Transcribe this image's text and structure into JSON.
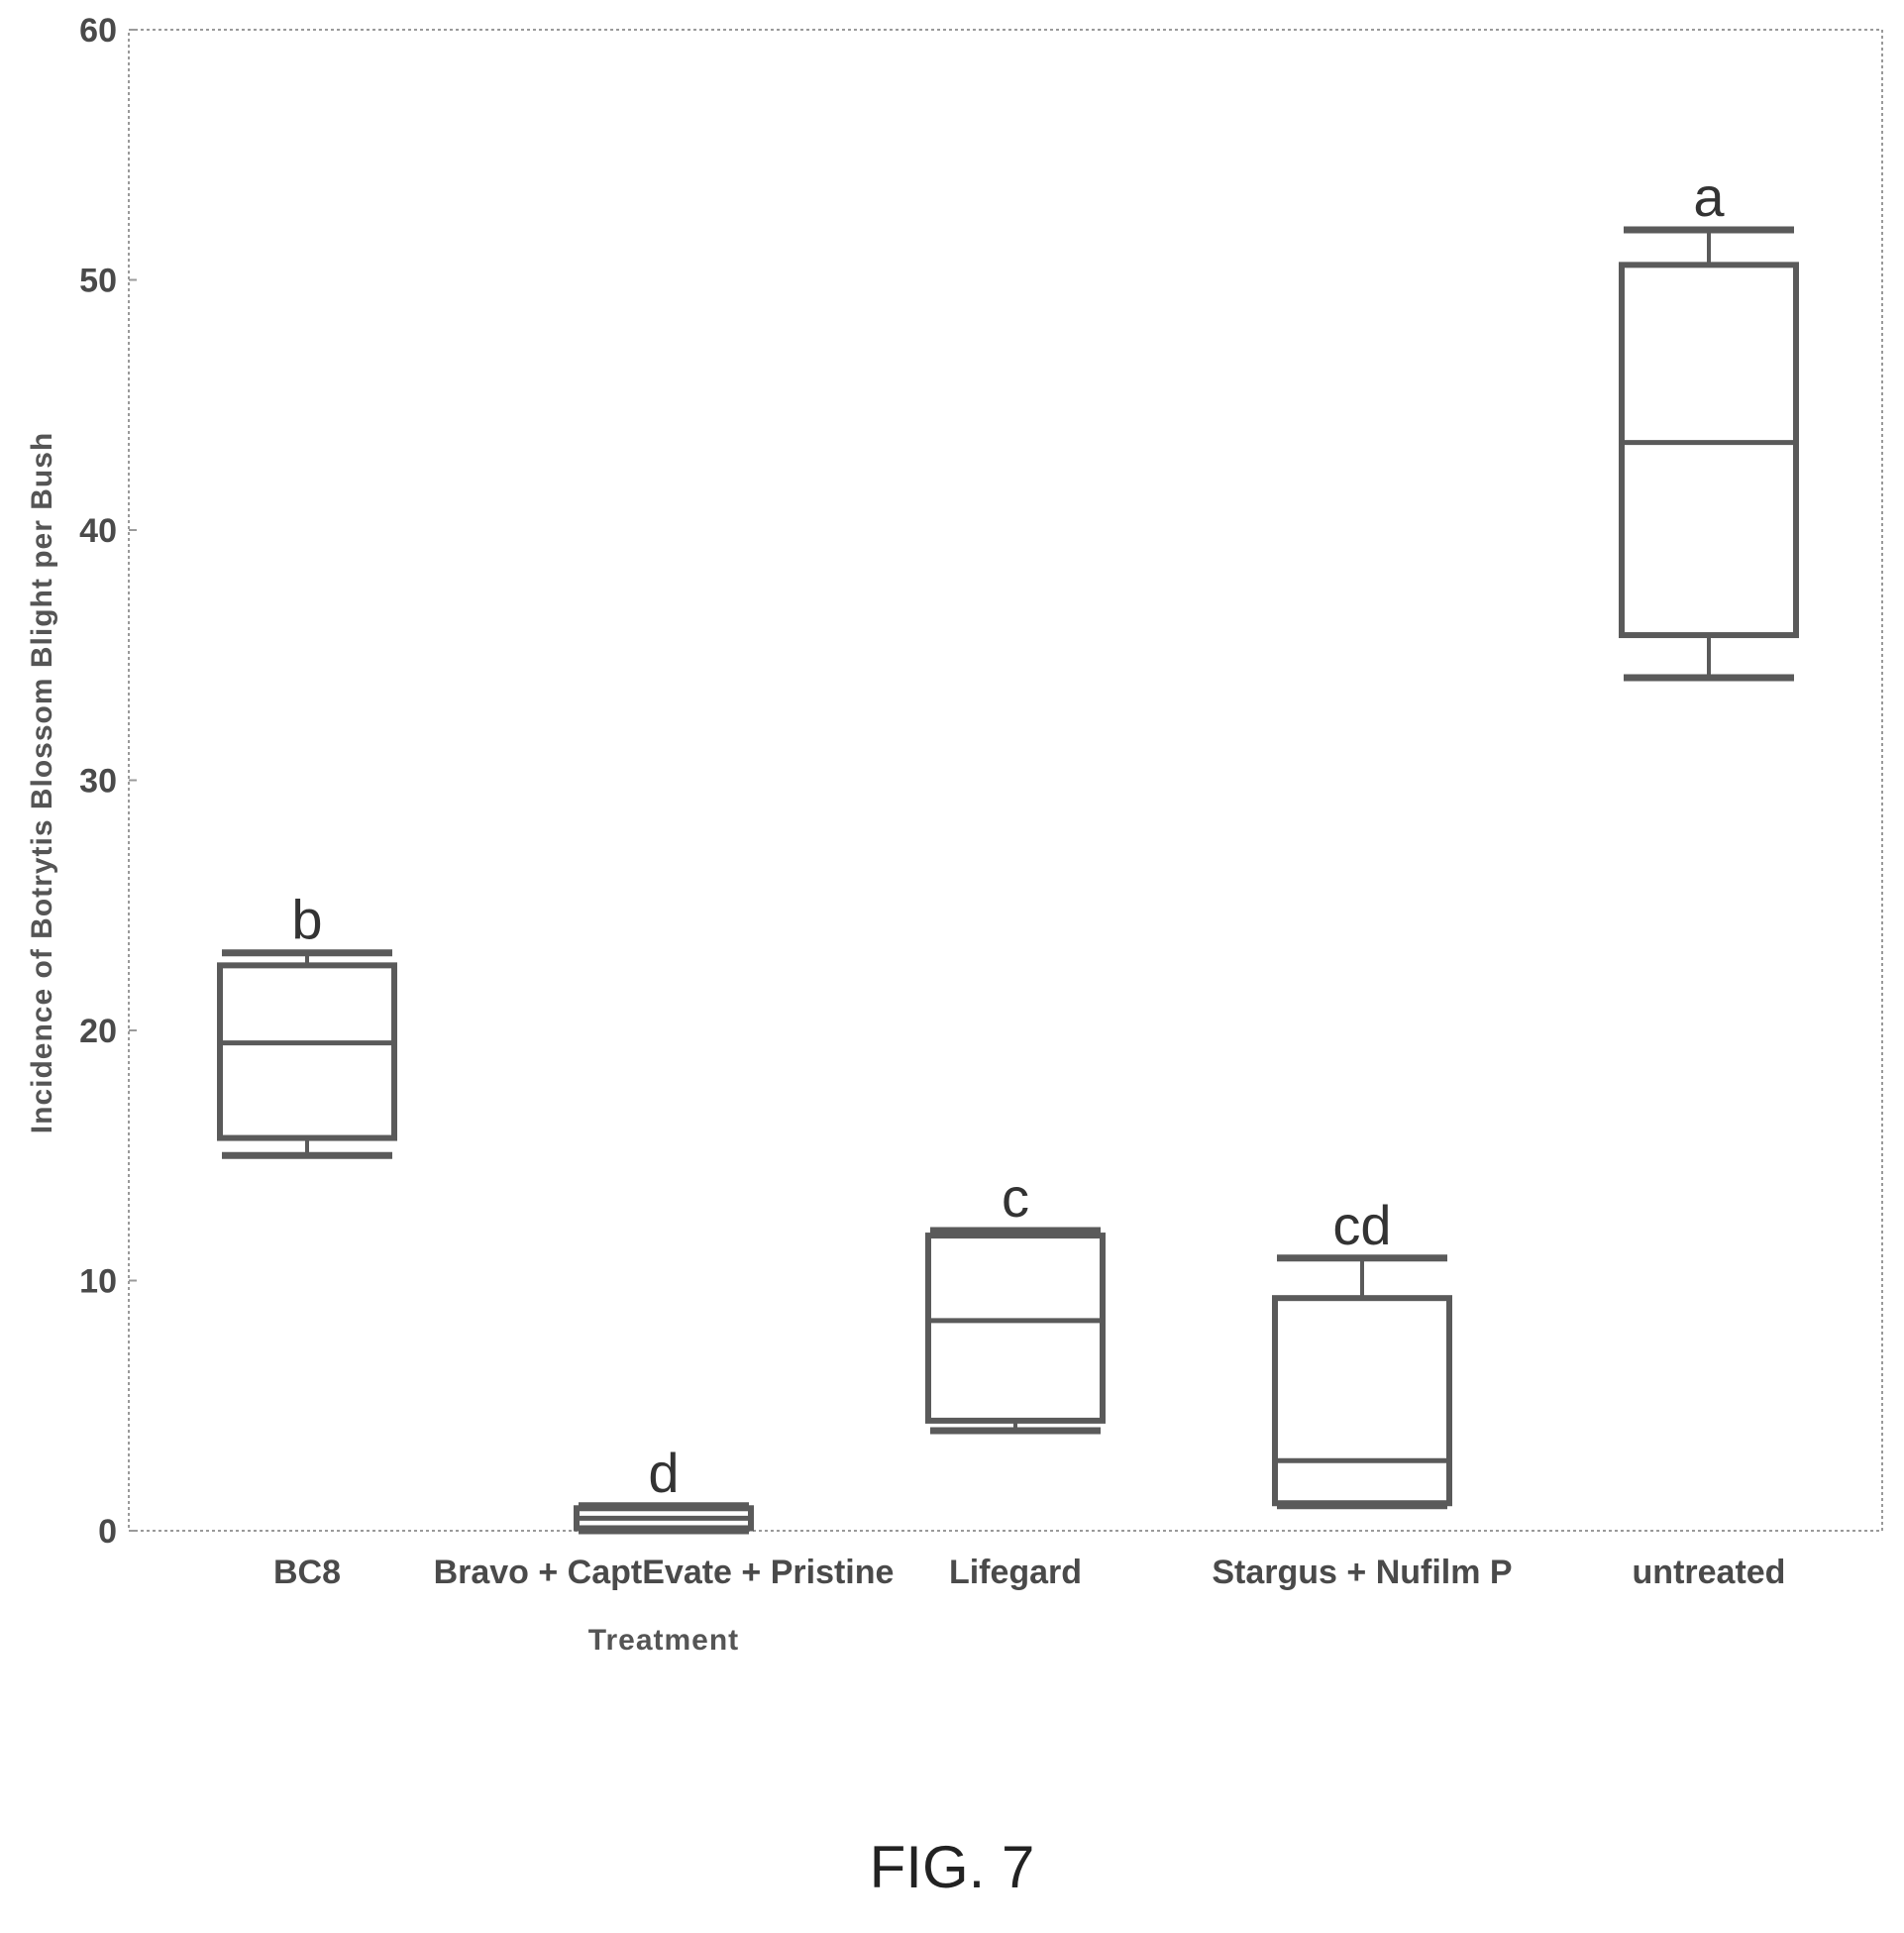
{
  "chart_data": {
    "type": "box",
    "xlabel": "Treatment",
    "ylabel": "Incidence of Botrytis Blossom Blight per Bush",
    "ylim": [
      0,
      60
    ],
    "yticks": [
      0,
      10,
      20,
      30,
      40,
      50,
      60
    ],
    "categories": [
      "BC8",
      "Bravo + CaptEvate + Pristine",
      "Lifegard",
      "Stargus + Nufilm P",
      "untreated"
    ],
    "series": [
      {
        "category": "BC8",
        "min": 15,
        "q1": 15.7,
        "median": 19.5,
        "q3": 22.6,
        "max": 23.1,
        "letter": "b"
      },
      {
        "category": "Bravo + CaptEvate + Pristine",
        "min": 0,
        "q1": 0.1,
        "median": 0.5,
        "q3": 0.9,
        "max": 1.0,
        "letter": "d"
      },
      {
        "category": "Lifegard",
        "min": 4.0,
        "q1": 4.4,
        "median": 8.4,
        "q3": 11.8,
        "max": 12.0,
        "letter": "c"
      },
      {
        "category": "Stargus + Nufilm P",
        "min": 1.0,
        "q1": 1.1,
        "median": 2.8,
        "q3": 9.3,
        "max": 10.9,
        "letter": "cd"
      },
      {
        "category": "untreated",
        "min": 34.1,
        "q1": 35.8,
        "median": 43.5,
        "q3": 50.6,
        "max": 52.0,
        "letter": "a"
      }
    ],
    "grid": false,
    "legend": "none"
  },
  "figure_caption": "FIG. 7"
}
